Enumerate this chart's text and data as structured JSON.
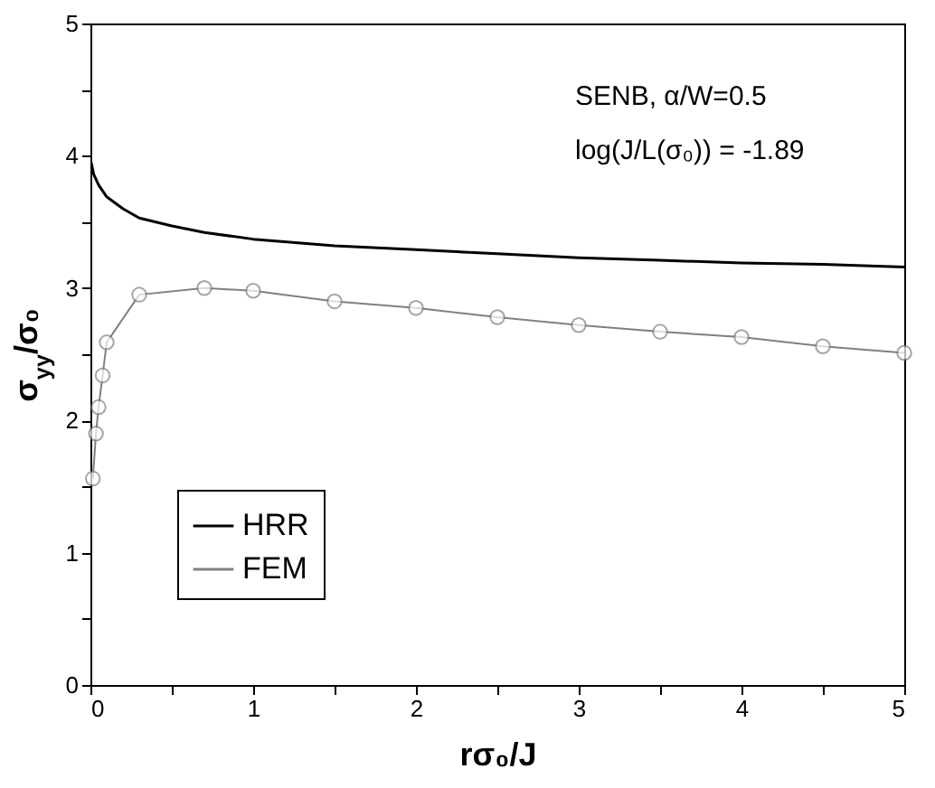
{
  "chart_data": {
    "type": "line",
    "xlabel": "rσ₀/J",
    "ylabel": "σ$_{yy}$/σ₀",
    "annotations": [
      "SENB, α/W=0.5",
      "log(J/L(σ₀)) = -1.89"
    ],
    "xlim": [
      0,
      5
    ],
    "ylim": [
      0,
      5
    ],
    "xticks": [
      0,
      {
        "value": 0.5,
        "label": null
      },
      1,
      {
        "value": 1.5,
        "label": null
      },
      2,
      {
        "value": 2.5,
        "label": null
      },
      3,
      {
        "value": 3.5,
        "label": null
      },
      4,
      {
        "value": 4.5,
        "label": null
      },
      5
    ],
    "yticks": [
      0,
      {
        "value": 0.5,
        "label": null
      },
      1,
      {
        "value": 1.5,
        "label": null
      },
      2,
      {
        "value": 2.5,
        "label": null
      },
      3,
      {
        "value": 3.5,
        "label": null
      },
      4,
      {
        "value": 4.5,
        "label": null
      },
      5
    ],
    "grid": false,
    "legend": "bottom left",
    "series": [
      {
        "name": "HRR",
        "color": "#000000",
        "marker": "none",
        "x": [
          0.005,
          0.02,
          0.05,
          0.1,
          0.2,
          0.3,
          0.5,
          0.7,
          1.0,
          1.5,
          2.0,
          2.5,
          3.0,
          3.5,
          4.0,
          4.5,
          5.0
        ],
        "values": [
          3.95,
          3.86,
          3.78,
          3.69,
          3.6,
          3.53,
          3.47,
          3.42,
          3.37,
          3.32,
          3.29,
          3.26,
          3.23,
          3.21,
          3.19,
          3.18,
          3.16
        ]
      },
      {
        "name": "FEM",
        "color": "#808080",
        "marker": "circle",
        "x": [
          0.015,
          0.034,
          0.05,
          0.075,
          0.1,
          0.3,
          0.7,
          1.0,
          1.5,
          2.0,
          2.5,
          3.0,
          3.5,
          4.0,
          4.5,
          5.0
        ],
        "values": [
          1.56,
          1.9,
          2.1,
          2.34,
          2.59,
          2.95,
          3.0,
          2.98,
          2.9,
          2.85,
          2.78,
          2.72,
          2.67,
          2.63,
          2.56,
          2.51
        ]
      }
    ]
  }
}
